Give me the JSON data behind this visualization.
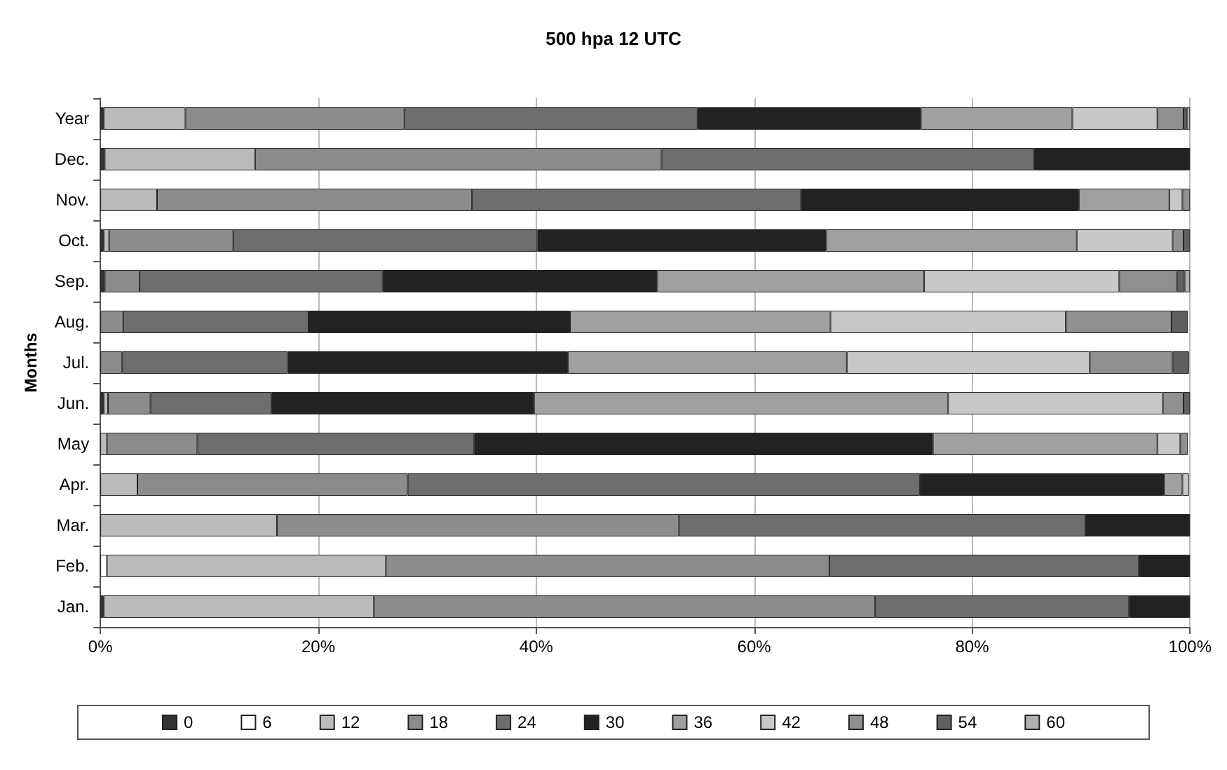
{
  "chart_data": {
    "type": "bar",
    "orientation": "horizontal",
    "stacked": true,
    "title": "500 hpa 12 UTC",
    "ylabel": "Months",
    "categories": [
      "Year",
      "Dec.",
      "Nov.",
      "Oct.",
      "Sep.",
      "Aug.",
      "Jul.",
      "Jun.",
      "May",
      "Apr.",
      "Mar.",
      "Feb.",
      "Jan."
    ],
    "series": [
      {
        "name": "0",
        "color": "#333333",
        "values": [
          0.3,
          0.4,
          null,
          0.3,
          0.4,
          null,
          null,
          0.3,
          null,
          null,
          null,
          null,
          0.3
        ]
      },
      {
        "name": "6",
        "color": "#ffffff",
        "values": [
          null,
          null,
          null,
          null,
          null,
          null,
          null,
          null,
          null,
          null,
          null,
          0.6,
          null
        ]
      },
      {
        "name": "12",
        "color": "#bbbbbb",
        "values": [
          7.5,
          13.8,
          5.2,
          0.5,
          null,
          null,
          null,
          0.4,
          0.6,
          3.4,
          16.2,
          25.6,
          24.8
        ]
      },
      {
        "name": "18",
        "color": "#8c8c8c",
        "values": [
          20.1,
          37.3,
          28.9,
          11.4,
          3.2,
          2.1,
          2.0,
          3.9,
          8.3,
          24.8,
          36.9,
          40.7,
          46.0
        ]
      },
      {
        "name": "24",
        "color": "#6e6e6e",
        "values": [
          26.9,
          34.2,
          30.2,
          27.9,
          22.3,
          17.0,
          15.2,
          11.1,
          25.4,
          47.0,
          37.3,
          28.4,
          23.3
        ]
      },
      {
        "name": "30",
        "color": "#222222",
        "values": [
          20.5,
          14.3,
          25.5,
          26.5,
          25.2,
          24.0,
          25.7,
          24.1,
          42.1,
          22.4,
          9.6,
          4.7,
          5.6
        ]
      },
      {
        "name": "36",
        "color": "#a0a0a0",
        "values": [
          13.9,
          null,
          8.3,
          23.0,
          24.5,
          23.9,
          25.6,
          38.0,
          20.6,
          1.7,
          null,
          null,
          null
        ]
      },
      {
        "name": "42",
        "color": "#c8c8c8",
        "values": [
          7.8,
          null,
          1.2,
          8.8,
          17.9,
          21.6,
          22.3,
          19.7,
          2.1,
          0.6,
          null,
          null,
          null
        ]
      },
      {
        "name": "48",
        "color": "#909090",
        "values": [
          2.4,
          null,
          0.7,
          1.0,
          5.3,
          9.7,
          7.6,
          1.9,
          0.7,
          null,
          null,
          null,
          null
        ]
      },
      {
        "name": "54",
        "color": "#606060",
        "values": [
          0.3,
          null,
          null,
          0.6,
          0.7,
          1.5,
          1.5,
          0.6,
          null,
          null,
          null,
          null,
          null
        ]
      },
      {
        "name": "60",
        "color": "#b0b0b0",
        "values": [
          0.3,
          null,
          null,
          null,
          0.5,
          null,
          null,
          null,
          null,
          null,
          null,
          null,
          null
        ]
      }
    ],
    "xlim": [
      0,
      100
    ],
    "xticks": [
      {
        "value": 0,
        "label": "0%"
      },
      {
        "value": 20,
        "label": "20%"
      },
      {
        "value": 40,
        "label": "40%"
      },
      {
        "value": 60,
        "label": "60%"
      },
      {
        "value": 80,
        "label": "80%"
      },
      {
        "value": 100,
        "label": "100%"
      }
    ],
    "grid": "x",
    "legend": "bottom"
  }
}
